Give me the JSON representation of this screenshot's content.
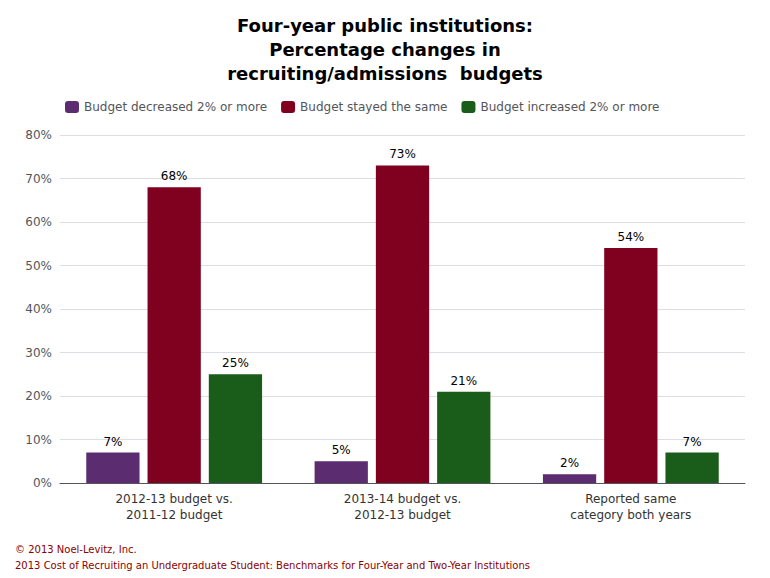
{
  "chart_data": {
    "type": "bar",
    "title": "Four-year public institutions:\nPercentage changes in\nrecruiting/admissions  budgets",
    "categories": [
      "2012-13 budget vs.\n2011-12 budget",
      "2013-14 budget vs.\n2012-13 budget",
      "Reported same\ncategory both years"
    ],
    "series": [
      {
        "name": "Budget decreased 2% or more",
        "color": "#5B2C6F",
        "values": [
          7,
          5,
          2
        ],
        "value_labels": [
          "7%",
          "5%",
          "2%"
        ]
      },
      {
        "name": "Budget stayed the same",
        "color": "#800020",
        "values": [
          68,
          73,
          54
        ],
        "value_labels": [
          "68%",
          "73%",
          "54%"
        ]
      },
      {
        "name": "Budget increased 2% or more",
        "color": "#1A5C1A",
        "values": [
          25,
          21,
          7
        ],
        "value_labels": [
          "25%",
          "21%",
          "7%"
        ]
      }
    ],
    "ylim": [
      0,
      80
    ],
    "yticks": [
      {
        "value": 0,
        "label": "0%"
      },
      {
        "value": 10,
        "label": "10%"
      },
      {
        "value": 20,
        "label": "20%"
      },
      {
        "value": 30,
        "label": "30%"
      },
      {
        "value": 40,
        "label": "40%"
      },
      {
        "value": 50,
        "label": "50%"
      },
      {
        "value": 60,
        "label": "60%"
      },
      {
        "value": 70,
        "label": "70%"
      },
      {
        "value": 80,
        "label": "80%"
      }
    ],
    "grid": true,
    "legend": "upper left",
    "data_labels": true,
    "annotations": [
      "© 2013 Noel-Levitz, Inc.",
      "2013 Cost of Recruiting an Undergraduate Student: Benchmarks for Four-Year and Two-Year Institutions"
    ]
  }
}
